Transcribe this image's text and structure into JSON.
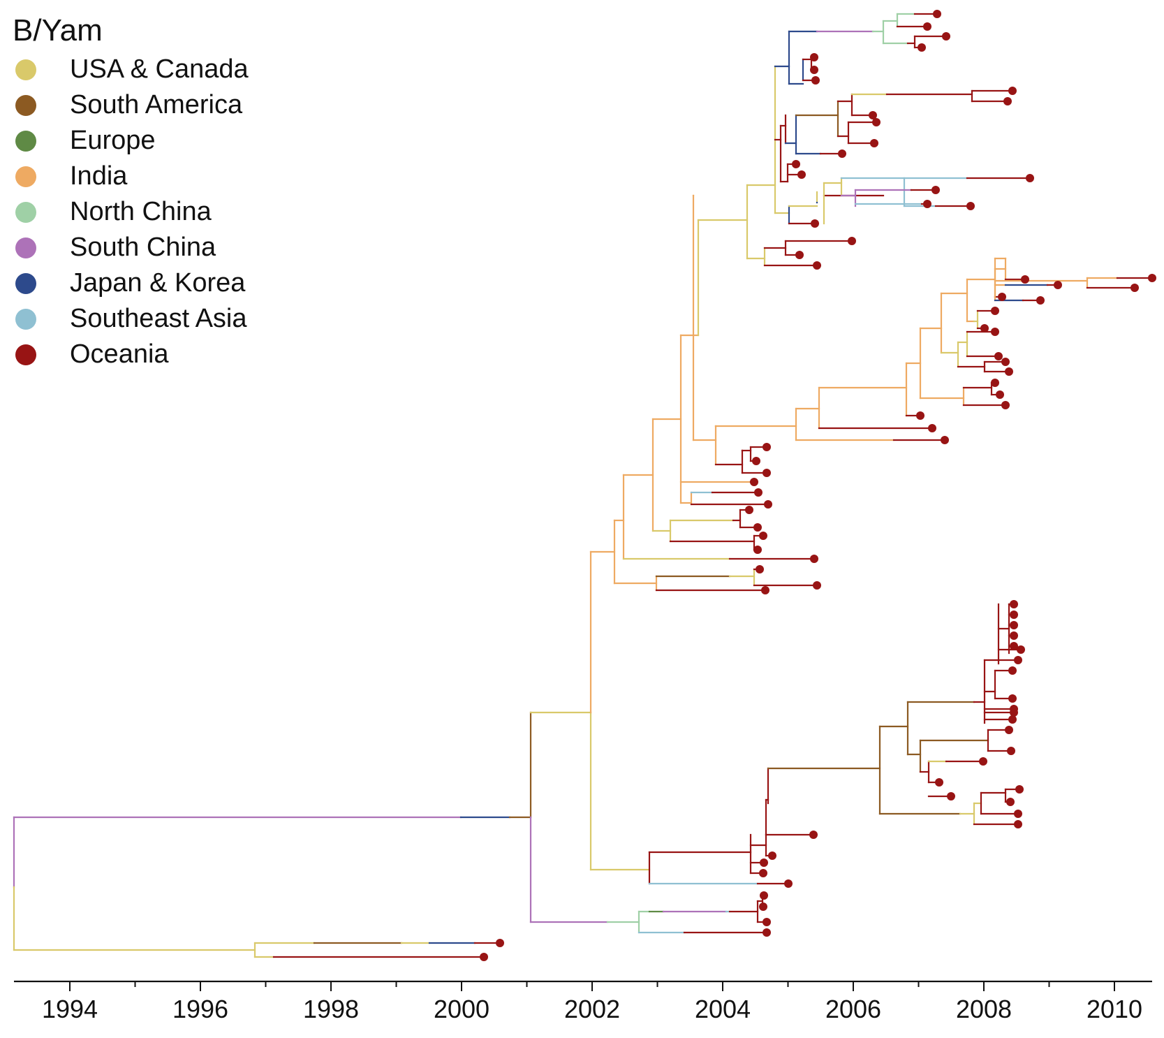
{
  "legend": {
    "title": "B/Yam",
    "items": [
      {
        "label": "USA & Canada",
        "color": "#d9c96a"
      },
      {
        "label": "South America",
        "color": "#8c5a22"
      },
      {
        "label": "Europe",
        "color": "#5f8a45"
      },
      {
        "label": "India",
        "color": "#eeaa62"
      },
      {
        "label": "North China",
        "color": "#9fd0a6"
      },
      {
        "label": "South China",
        "color": "#ad72b8"
      },
      {
        "label": "Japan & Korea",
        "color": "#2d4a8c"
      },
      {
        "label": "Southeast Asia",
        "color": "#8fc0d2"
      },
      {
        "label": "Oceania",
        "color": "#981414"
      }
    ]
  },
  "axis": {
    "major_ticks": [
      "1994",
      "1996",
      "1998",
      "2000",
      "2002",
      "2004",
      "2006",
      "2008",
      "2010"
    ],
    "minor_ticks": [
      1995,
      1997,
      1999,
      2001,
      2003,
      2005,
      2007,
      2009
    ]
  }
}
